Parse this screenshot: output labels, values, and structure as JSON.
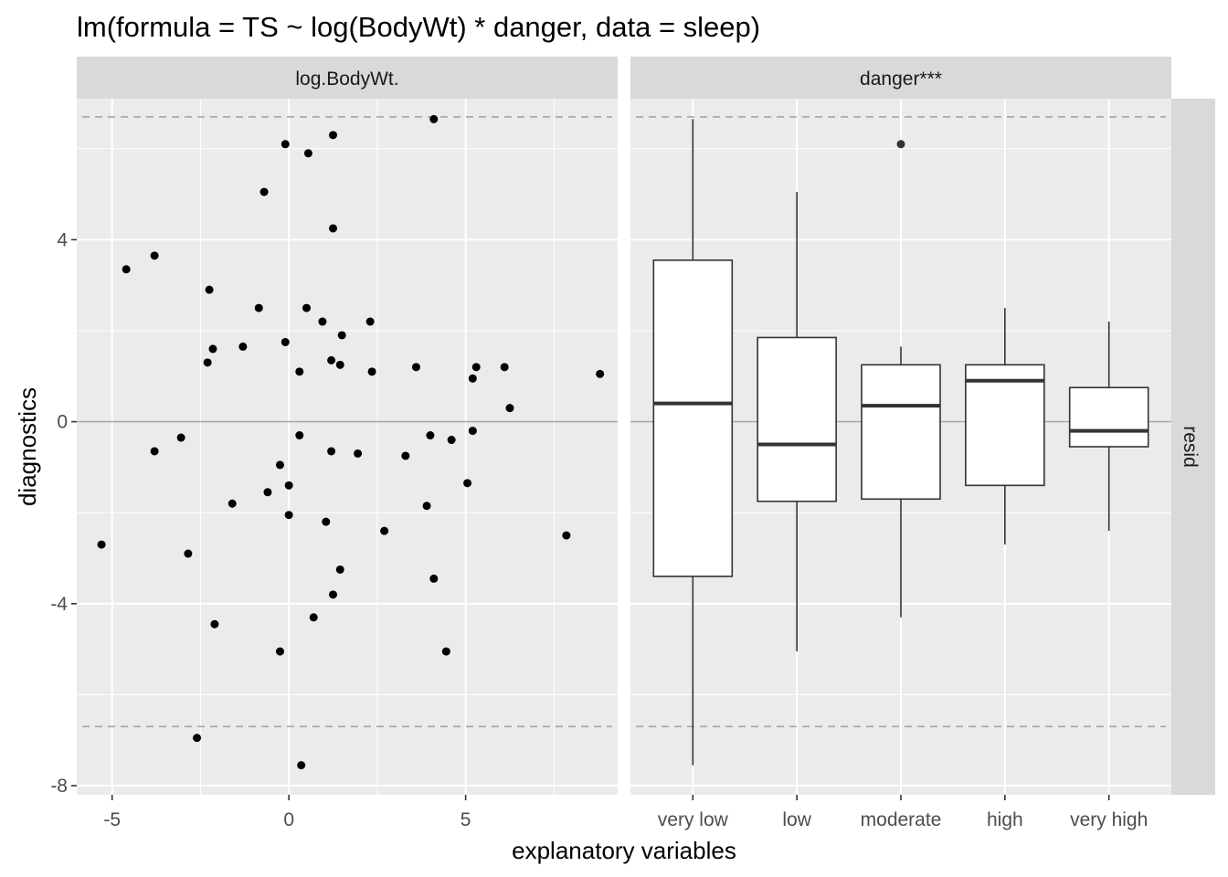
{
  "chart_data": {
    "type": "scatter+boxplot",
    "title": "lm(formula = TS ~ log(BodyWt) * danger, data = sleep)",
    "xlabel": "explanatory variables",
    "ylabel": "diagnostics",
    "row_strip": "resid",
    "ylim": [
      -8.2,
      7.1
    ],
    "y_ticks": [
      -8,
      -4,
      0,
      4
    ],
    "y_tick_labels": [
      "-8",
      "-4",
      "0",
      "4"
    ],
    "reference_lines": {
      "zero": 0,
      "dashed_upper": 6.7,
      "dashed_lower": -6.7
    },
    "panels": [
      {
        "strip": "log.BodyWt.",
        "type": "scatter",
        "xlim": [
          -6.0,
          9.3
        ],
        "x_ticks": [
          -5,
          0,
          5
        ],
        "x_tick_labels": [
          "-5",
          "0",
          "5"
        ],
        "points": [
          [
            -5.3,
            -2.7
          ],
          [
            -4.6,
            3.35
          ],
          [
            -3.8,
            3.65
          ],
          [
            -3.8,
            -0.65
          ],
          [
            -3.05,
            -0.35
          ],
          [
            -2.85,
            -2.9
          ],
          [
            -2.6,
            -6.95
          ],
          [
            -2.3,
            1.3
          ],
          [
            -2.25,
            2.9
          ],
          [
            -2.15,
            1.6
          ],
          [
            -2.1,
            -4.45
          ],
          [
            -1.6,
            -1.8
          ],
          [
            -1.3,
            1.65
          ],
          [
            -0.85,
            2.5
          ],
          [
            -0.7,
            5.05
          ],
          [
            -0.6,
            -1.55
          ],
          [
            -0.25,
            -5.05
          ],
          [
            -0.25,
            -0.95
          ],
          [
            -0.1,
            1.75
          ],
          [
            -0.1,
            6.1
          ],
          [
            0.0,
            -1.4
          ],
          [
            0.0,
            -2.05
          ],
          [
            0.3,
            1.1
          ],
          [
            0.3,
            -0.3
          ],
          [
            0.35,
            -7.55
          ],
          [
            0.5,
            2.5
          ],
          [
            0.55,
            5.9
          ],
          [
            0.7,
            -4.3
          ],
          [
            0.95,
            2.2
          ],
          [
            1.05,
            -2.2
          ],
          [
            1.2,
            1.35
          ],
          [
            1.2,
            -0.65
          ],
          [
            1.25,
            6.3
          ],
          [
            1.25,
            4.25
          ],
          [
            1.25,
            -3.8
          ],
          [
            1.45,
            1.25
          ],
          [
            1.45,
            -3.25
          ],
          [
            1.5,
            1.9
          ],
          [
            1.95,
            -0.7
          ],
          [
            2.3,
            2.2
          ],
          [
            2.35,
            1.1
          ],
          [
            2.7,
            -2.4
          ],
          [
            3.3,
            -0.75
          ],
          [
            3.6,
            1.2
          ],
          [
            3.9,
            -1.85
          ],
          [
            4.0,
            -0.3
          ],
          [
            4.1,
            6.65
          ],
          [
            4.1,
            -3.45
          ],
          [
            4.45,
            -5.05
          ],
          [
            4.6,
            -0.4
          ],
          [
            5.05,
            -1.35
          ],
          [
            5.2,
            -0.2
          ],
          [
            5.2,
            0.95
          ],
          [
            5.3,
            1.2
          ],
          [
            6.1,
            1.2
          ],
          [
            6.25,
            0.3
          ],
          [
            7.85,
            -2.5
          ],
          [
            8.8,
            1.05
          ]
        ]
      },
      {
        "strip": "danger***",
        "type": "boxplot",
        "categories": [
          "very low",
          "low",
          "moderate",
          "high",
          "very high"
        ],
        "boxes": [
          {
            "lower_whisker": -7.55,
            "q1": -3.4,
            "median": 0.4,
            "q3": 3.55,
            "upper_whisker": 6.65,
            "outliers": []
          },
          {
            "lower_whisker": -5.05,
            "q1": -1.75,
            "median": -0.5,
            "q3": 1.85,
            "upper_whisker": 5.05,
            "outliers": []
          },
          {
            "lower_whisker": -4.3,
            "q1": -1.7,
            "median": 0.35,
            "q3": 1.25,
            "upper_whisker": 1.65,
            "outliers": [
              6.1
            ]
          },
          {
            "lower_whisker": -2.7,
            "q1": -1.4,
            "median": 0.9,
            "q3": 1.25,
            "upper_whisker": 2.5,
            "outliers": []
          },
          {
            "lower_whisker": -2.4,
            "q1": -0.55,
            "median": -0.2,
            "q3": 0.75,
            "upper_whisker": 2.2,
            "outliers": []
          }
        ]
      }
    ]
  }
}
